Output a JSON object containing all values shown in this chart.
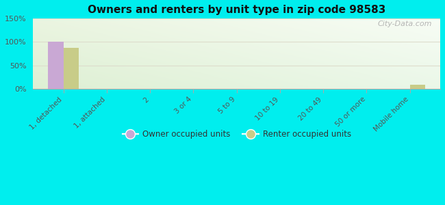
{
  "title": "Owners and renters by unit type in zip code 98583",
  "categories": [
    "1, detached",
    "1, attached",
    "2",
    "3 or 4",
    "5 to 9",
    "10 to 19",
    "20 to 49",
    "50 or more",
    "Mobile home"
  ],
  "owner_values": [
    100,
    0,
    0,
    0,
    0,
    0,
    0,
    0,
    0
  ],
  "renter_values": [
    88,
    0,
    0,
    0,
    0,
    0,
    0,
    0,
    8
  ],
  "owner_color": "#c9a8d4",
  "renter_color": "#c8cc88",
  "background_outer": "#00eeee",
  "ylim": [
    0,
    150
  ],
  "yticks": [
    0,
    50,
    100,
    150
  ],
  "ytick_labels": [
    "0%",
    "50%",
    "100%",
    "150%"
  ],
  "watermark": "City-Data.com",
  "legend_owner": "Owner occupied units",
  "legend_renter": "Renter occupied units",
  "bar_width": 0.35,
  "figsize": [
    6.5,
    3.0
  ],
  "dpi": 100
}
